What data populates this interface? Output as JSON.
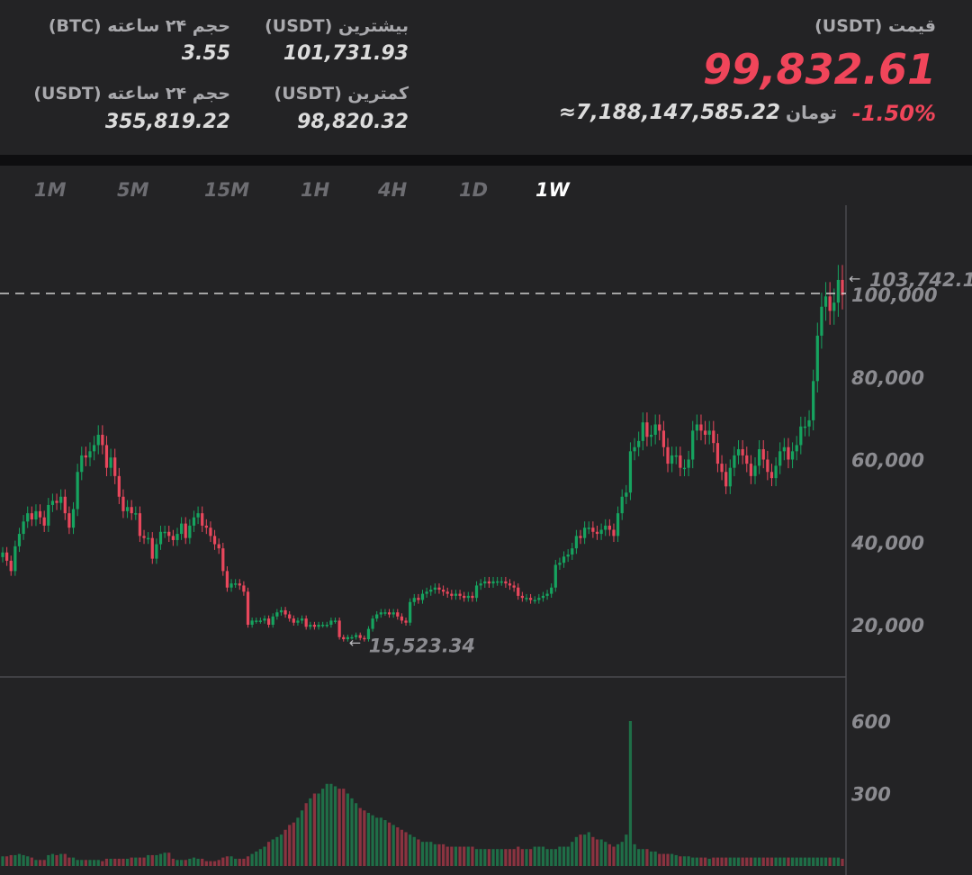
{
  "header": {
    "price_label": "قیمت (USDT)",
    "price": "99,832.61",
    "change": "-1.50%",
    "toman_value": "≈7,188,147,585.22",
    "toman_unit": "تومان",
    "high_label": "بیشترین (USDT)",
    "high_value": "101,731.93",
    "low_label": "کمترین (USDT)",
    "low_value": "98,820.32",
    "vol_btc_label": "حجم ۲۴ ساعته (BTC)",
    "vol_btc_value": "3.55",
    "vol_usdt_label": "حجم ۲۴ ساعته (USDT)",
    "vol_usdt_value": "355,819.22"
  },
  "tabs": [
    "1M",
    "5M",
    "15M",
    "1H",
    "4H",
    "1D",
    "1W"
  ],
  "active_tab": "1W",
  "colors": {
    "up": "#16a35f",
    "down": "#e8475c",
    "accent_red": "#f0455a",
    "bg": "#232325"
  },
  "chart_data": {
    "type": "candlestick",
    "interval": "1W",
    "y_ticks": [
      "20,000",
      "40,000",
      "60,000",
      "80,000",
      "100,000"
    ],
    "ylim": [
      15000,
      104000
    ],
    "volume_ticks": [
      "300",
      "600"
    ],
    "volume_lim": [
      0,
      700
    ],
    "max_label": "103,742.1",
    "min_label": "15,523.34",
    "current_price_line": 100000,
    "closes": [
      37500,
      35500,
      33000,
      39000,
      42000,
      45000,
      47000,
      45500,
      47500,
      46000,
      44000,
      49000,
      50000,
      49500,
      51000,
      47000,
      43500,
      48000,
      57000,
      61000,
      60500,
      62000,
      63500,
      66000,
      63500,
      58000,
      60500,
      56000,
      51000,
      47500,
      48500,
      47000,
      47000,
      41500,
      41000,
      41000,
      36000,
      39500,
      42500,
      42500,
      41500,
      40500,
      42000,
      44500,
      41000,
      44000,
      46000,
      47000,
      44000,
      43500,
      41500,
      39500,
      38500,
      33000,
      29000,
      30000,
      30000,
      29500,
      28000,
      20000,
      21000,
      21000,
      21000,
      21500,
      20000,
      22000,
      23000,
      23500,
      22500,
      21500,
      20500,
      21000,
      21500,
      19500,
      20000,
      19500,
      20000,
      20000,
      20000,
      21000,
      21000,
      17000,
      16500,
      17000,
      17000,
      17500,
      16800,
      16500,
      19000,
      21500,
      22500,
      23000,
      23000,
      22500,
      23000,
      22000,
      21000,
      20500,
      25500,
      26500,
      26000,
      27500,
      28000,
      28500,
      29000,
      28500,
      28000,
      27500,
      27000,
      27500,
      27000,
      26500,
      27000,
      26500,
      29500,
      30000,
      30500,
      30000,
      30500,
      30500,
      30500,
      30000,
      29500,
      29000,
      27000,
      26500,
      26500,
      26000,
      26000,
      26500,
      27000,
      27500,
      29000,
      34500,
      35000,
      36500,
      37000,
      38500,
      41500,
      41000,
      43500,
      43500,
      42500,
      42000,
      43000,
      44000,
      43000,
      41500,
      47000,
      51000,
      52000,
      62000,
      63000,
      64500,
      69000,
      65500,
      66000,
      68500,
      67000,
      63000,
      59000,
      61000,
      61000,
      58000,
      58000,
      60000,
      67000,
      68500,
      67000,
      66000,
      67000,
      64000,
      59000,
      57000,
      53500,
      58000,
      61000,
      62500,
      61000,
      59000,
      56000,
      58500,
      62500,
      60000,
      57000,
      55500,
      58500,
      62000,
      63000,
      60000,
      62000,
      63500,
      68000,
      68000,
      69500,
      79000,
      90000,
      97000,
      99500,
      96000,
      98000,
      103500,
      99832.61
    ],
    "volumes": [
      40,
      40,
      45,
      45,
      50,
      45,
      40,
      35,
      25,
      25,
      25,
      45,
      50,
      45,
      50,
      50,
      35,
      35,
      25,
      25,
      25,
      25,
      25,
      25,
      20,
      30,
      30,
      30,
      30,
      30,
      30,
      35,
      35,
      35,
      35,
      45,
      45,
      45,
      50,
      55,
      55,
      30,
      25,
      25,
      25,
      30,
      35,
      30,
      30,
      20,
      20,
      20,
      25,
      35,
      40,
      40,
      30,
      30,
      30,
      40,
      50,
      60,
      70,
      80,
      100,
      110,
      120,
      130,
      150,
      170,
      180,
      200,
      230,
      260,
      280,
      300,
      300,
      320,
      340,
      340,
      330,
      320,
      320,
      300,
      280,
      260,
      240,
      230,
      220,
      210,
      200,
      200,
      190,
      180,
      170,
      160,
      150,
      140,
      130,
      120,
      110,
      100,
      100,
      100,
      90,
      90,
      90,
      80,
      80,
      80,
      80,
      80,
      80,
      80,
      70,
      70,
      70,
      70,
      70,
      70,
      70,
      70,
      70,
      70,
      80,
      70,
      70,
      70,
      80,
      80,
      80,
      70,
      70,
      70,
      80,
      80,
      80,
      100,
      120,
      130,
      130,
      140,
      120,
      110,
      110,
      100,
      90,
      80,
      90,
      100,
      130,
      600,
      90,
      70,
      70,
      70,
      60,
      60,
      50,
      50,
      50,
      50,
      45,
      40,
      40,
      40,
      35,
      35,
      35,
      35,
      30,
      35,
      35,
      35,
      35,
      35,
      35,
      35,
      35,
      35,
      35,
      35,
      35,
      35,
      35,
      35,
      35,
      35,
      35,
      35,
      35,
      35,
      35,
      35,
      35,
      35,
      35,
      35,
      35,
      35,
      35,
      35
    ]
  }
}
